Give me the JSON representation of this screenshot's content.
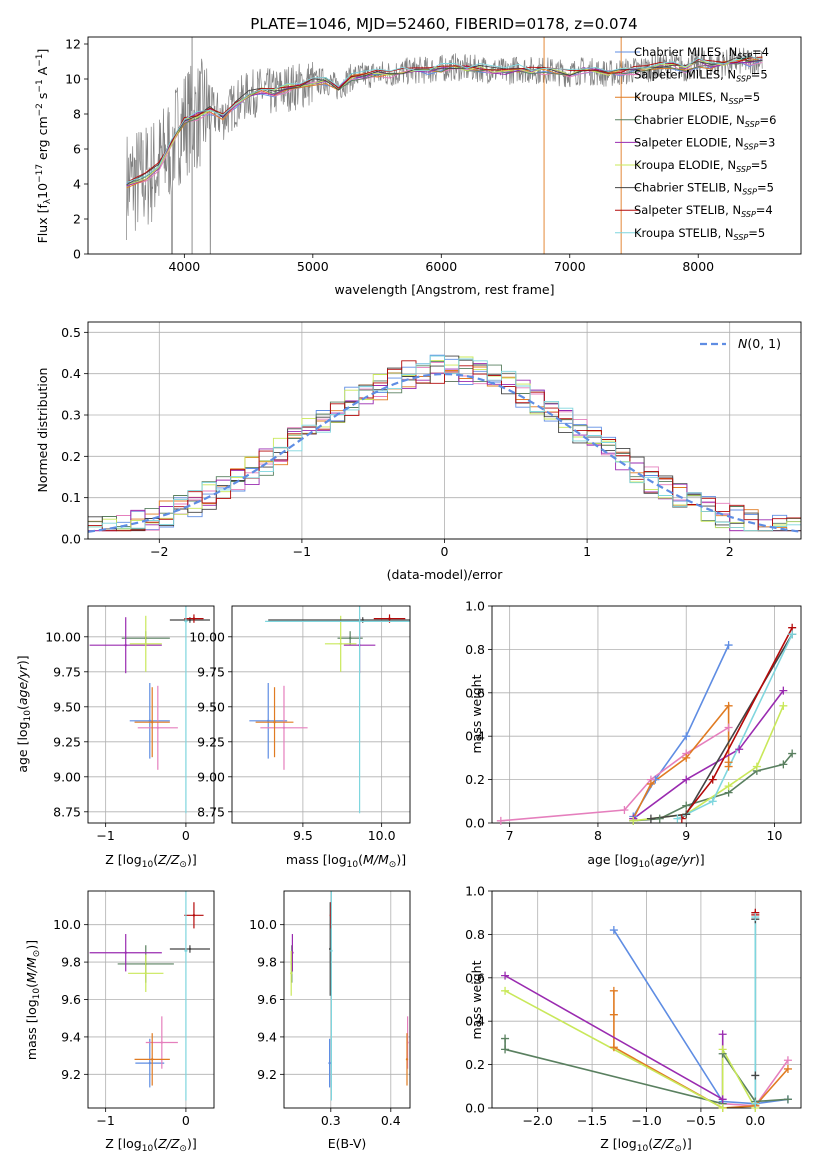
{
  "figure_title": "PLATE=1046, MJD=52460, FIBERID=0178, z=0.074",
  "colors": {
    "Chabrier MILES": "#5f8de3",
    "Salpeter MILES": "#e57fbd",
    "Kroupa MILES": "#e07b22",
    "Chabrier ELODIE": "#5a8060",
    "Salpeter ELODIE": "#9a2bb0",
    "Kroupa ELODIE": "#c9e85a",
    "Chabrier STELIB": "#444444",
    "Salpeter STELIB": "#b40a0a",
    "Kroupa STELIB": "#7fd6de",
    "data": "#808080",
    "gaussian": "#5f8de3",
    "grid": "#b0b0b0"
  },
  "chart_data": [
    {
      "id": "spectrum",
      "type": "line",
      "title": "PLATE=1046, MJD=52460, FIBERID=0178, z=0.074",
      "xlabel": "wavelength [Angstrom, rest frame]",
      "ylabel": "Flux [f_λ 10^-17 erg cm^-2 s^-1 A^-1]",
      "xlim": [
        3250,
        8800
      ],
      "ylim": [
        0,
        12.4
      ],
      "xticks": [
        4000,
        5000,
        6000,
        7000,
        8000
      ],
      "yticks": [
        0,
        2,
        4,
        6,
        8,
        10,
        12
      ],
      "grid": false,
      "legend_position": "upper right",
      "legend": [
        {
          "label": "Chabrier MILES, N_SSP=4",
          "model": "Chabrier MILES"
        },
        {
          "label": "Salpeter MILES, N_SSP=5",
          "model": "Salpeter MILES"
        },
        {
          "label": "Kroupa MILES, N_SSP=5",
          "model": "Kroupa MILES"
        },
        {
          "label": "Chabrier ELODIE, N_SSP=6",
          "model": "Chabrier ELODIE"
        },
        {
          "label": "Salpeter ELODIE, N_SSP=3",
          "model": "Salpeter ELODIE"
        },
        {
          "label": "Kroupa ELODIE, N_SSP=5",
          "model": "Kroupa ELODIE"
        },
        {
          "label": "Chabrier STELIB, N_SSP=5",
          "model": "Chabrier STELIB"
        },
        {
          "label": "Salpeter STELIB, N_SSP=4",
          "model": "Salpeter STELIB"
        },
        {
          "label": "Kroupa STELIB, N_SSP=5",
          "model": "Kroupa STELIB"
        }
      ],
      "model_curve": {
        "x": [
          3550,
          3700,
          3800,
          3900,
          4000,
          4100,
          4200,
          4300,
          4400,
          4500,
          4600,
          4700,
          4800,
          4900,
          5000,
          5100,
          5200,
          5300,
          5400,
          5500,
          5600,
          5700,
          5800,
          5900,
          6000,
          6100,
          6200,
          6300,
          6400,
          6500,
          6600,
          6700,
          6800,
          6900,
          7000,
          7100,
          7200,
          7300,
          7400,
          7500,
          7600,
          7700,
          7800,
          7900,
          8000,
          8100,
          8200,
          8300,
          8400,
          8500
        ],
        "y": [
          4.0,
          4.4,
          5.0,
          6.3,
          7.6,
          7.9,
          8.2,
          7.8,
          8.6,
          9.1,
          9.3,
          9.2,
          9.5,
          9.6,
          9.8,
          9.9,
          9.5,
          10.1,
          10.2,
          10.3,
          10.3,
          10.4,
          10.5,
          10.5,
          10.6,
          10.7,
          10.6,
          10.6,
          10.5,
          10.4,
          10.6,
          10.5,
          10.5,
          10.4,
          10.3,
          10.5,
          10.4,
          10.3,
          10.4,
          10.5,
          10.6,
          10.7,
          10.8,
          10.6,
          10.9,
          10.8,
          10.9,
          11.0,
          11.0,
          11.1
        ]
      }
    },
    {
      "id": "residuals",
      "type": "histogram",
      "xlabel": "(data-model)/error",
      "ylabel": "Normed distribution",
      "xlim": [
        -2.5,
        2.5
      ],
      "ylim": [
        0,
        0.525
      ],
      "xticks": [
        -2,
        -1,
        0,
        1,
        2
      ],
      "yticks": [
        0.0,
        0.1,
        0.2,
        0.3,
        0.4,
        0.5
      ],
      "grid": true,
      "legend": [
        {
          "label": "N(0,1)",
          "style": "dashed"
        }
      ],
      "legend_position": "upper right"
    },
    {
      "id": "age_vs_Z",
      "type": "scatter",
      "xlabel": "Z [log10(Z/Z☉)]",
      "ylabel": "age  [log10(age/yr)]",
      "xlim": [
        -1.22,
        0.35
      ],
      "ylim": [
        8.67,
        10.22
      ],
      "xticks": [
        -1,
        0
      ],
      "yticks": [
        8.75,
        9.0,
        9.25,
        9.5,
        9.75,
        10.0
      ],
      "grid": true,
      "points": [
        {
          "model": "Chabrier MILES",
          "x": -0.45,
          "y": 9.4,
          "xerr": 0.25,
          "yerr": 0.27
        },
        {
          "model": "Salpeter MILES",
          "x": -0.35,
          "y": 9.35,
          "xerr": 0.25,
          "yerr": 0.3
        },
        {
          "model": "Kroupa MILES",
          "x": -0.42,
          "y": 9.39,
          "xerr": 0.22,
          "yerr": 0.25
        },
        {
          "model": "Chabrier ELODIE",
          "x": -0.5,
          "y": 9.99,
          "xerr": 0.3,
          "yerr": 0.05
        },
        {
          "model": "Salpeter ELODIE",
          "x": -0.75,
          "y": 9.94,
          "xerr": 0.45,
          "yerr": 0.2
        },
        {
          "model": "Kroupa ELODIE",
          "x": -0.5,
          "y": 9.95,
          "xerr": 0.2,
          "yerr": 0.2
        },
        {
          "model": "Chabrier STELIB",
          "x": 0.05,
          "y": 10.12,
          "xerr": 0.25,
          "yerr": 0.02
        },
        {
          "model": "Salpeter STELIB",
          "x": 0.1,
          "y": 10.13,
          "xerr": 0.12,
          "yerr": 0.03
        },
        {
          "model": "Kroupa STELIB",
          "x": 0.0,
          "y": 10.11,
          "xerr": 0.02,
          "yerr": 1.37
        }
      ]
    },
    {
      "id": "age_vs_mass",
      "type": "scatter",
      "xlabel": "mass [log10(M/M☉)]",
      "ylabel": "",
      "xlim": [
        9.05,
        10.18
      ],
      "ylim": [
        8.67,
        10.22
      ],
      "xticks": [
        9.5,
        10.0
      ],
      "yticks": [
        8.75,
        9.0,
        9.25,
        9.5,
        9.75,
        10.0
      ],
      "grid": true,
      "points": [
        {
          "model": "Chabrier MILES",
          "x": 9.28,
          "y": 9.4,
          "xerr": 0.12,
          "yerr": 0.27
        },
        {
          "model": "Salpeter MILES",
          "x": 9.38,
          "y": 9.35,
          "xerr": 0.15,
          "yerr": 0.3
        },
        {
          "model": "Kroupa MILES",
          "x": 9.32,
          "y": 9.39,
          "xerr": 0.12,
          "yerr": 0.25
        },
        {
          "model": "Chabrier ELODIE",
          "x": 9.8,
          "y": 9.99,
          "xerr": 0.08,
          "yerr": 0.05
        },
        {
          "model": "Salpeter ELODIE",
          "x": 9.86,
          "y": 9.94,
          "xerr": 0.1,
          "yerr": 0.2
        },
        {
          "model": "Kroupa ELODIE",
          "x": 9.74,
          "y": 9.95,
          "xerr": 0.1,
          "yerr": 0.2
        },
        {
          "model": "Chabrier STELIB",
          "x": 9.88,
          "y": 10.12,
          "xerr": 0.6,
          "yerr": 0.02
        },
        {
          "model": "Salpeter STELIB",
          "x": 10.05,
          "y": 10.13,
          "xerr": 0.1,
          "yerr": 0.03
        },
        {
          "model": "Kroupa STELIB",
          "x": 9.86,
          "y": 10.11,
          "xerr": 0.6,
          "yerr": 1.37
        }
      ]
    },
    {
      "id": "mass_weight_vs_age",
      "type": "line",
      "xlabel": "age  [log10(age/yr)]",
      "ylabel": "mass weight",
      "xlim": [
        6.8,
        10.3
      ],
      "ylim": [
        0,
        1.0
      ],
      "xticks": [
        7,
        8,
        9,
        10
      ],
      "yticks": [
        0.0,
        0.2,
        0.4,
        0.6,
        0.8,
        1.0
      ],
      "grid": true,
      "series": [
        {
          "model": "Chabrier MILES",
          "x": [
            8.4,
            8.65,
            9.0,
            9.48
          ],
          "y": [
            0.03,
            0.2,
            0.4,
            0.82
          ]
        },
        {
          "model": "Salpeter MILES",
          "x": [
            6.9,
            8.3,
            8.6,
            9.0,
            9.48
          ],
          "y": [
            0.01,
            0.06,
            0.2,
            0.32,
            0.44
          ]
        },
        {
          "model": "Kroupa MILES",
          "x": [
            8.4,
            8.6,
            9.0,
            9.48,
            9.48,
            9.48
          ],
          "y": [
            0.02,
            0.18,
            0.3,
            0.54,
            0.26,
            0.28
          ]
        },
        {
          "model": "Chabrier ELODIE",
          "x": [
            8.4,
            8.7,
            9.0,
            9.48,
            9.8,
            10.1,
            10.2
          ],
          "y": [
            0.01,
            0.02,
            0.08,
            0.14,
            0.24,
            0.27,
            0.32
          ]
        },
        {
          "model": "Salpeter ELODIE",
          "x": [
            8.4,
            9.0,
            9.6,
            10.1
          ],
          "y": [
            0.02,
            0.2,
            0.34,
            0.61
          ]
        },
        {
          "model": "Kroupa ELODIE",
          "x": [
            8.4,
            9.0,
            9.48,
            9.8,
            10.1
          ],
          "y": [
            0.01,
            0.04,
            0.17,
            0.26,
            0.54
          ]
        },
        {
          "model": "Chabrier STELIB",
          "x": [
            8.6,
            9.0,
            10.2
          ],
          "y": [
            0.02,
            0.04,
            0.87
          ]
        },
        {
          "model": "Salpeter STELIB",
          "x": [
            8.95,
            9.3,
            10.2
          ],
          "y": [
            0.02,
            0.2,
            0.9
          ]
        },
        {
          "model": "Kroupa STELIB",
          "x": [
            8.9,
            9.3,
            10.2
          ],
          "y": [
            0.02,
            0.1,
            0.87
          ]
        }
      ]
    },
    {
      "id": "mass_vs_Z",
      "type": "scatter",
      "xlabel": "Z [log10(Z/Z☉)]",
      "ylabel": "mass [log10(M/M☉)]",
      "xlim": [
        -1.22,
        0.35
      ],
      "ylim": [
        9.02,
        10.18
      ],
      "xticks": [
        -1,
        0
      ],
      "yticks": [
        9.2,
        9.4,
        9.6,
        9.8,
        10.0
      ],
      "grid": true,
      "points": [
        {
          "model": "Chabrier MILES",
          "x": -0.45,
          "y": 9.26,
          "xerr": 0.18,
          "yerr": 0.13
        },
        {
          "model": "Salpeter MILES",
          "x": -0.3,
          "y": 9.37,
          "xerr": 0.2,
          "yerr": 0.14
        },
        {
          "model": "Kroupa MILES",
          "x": -0.42,
          "y": 9.28,
          "xerr": 0.22,
          "yerr": 0.14
        },
        {
          "model": "Chabrier ELODIE",
          "x": -0.5,
          "y": 9.79,
          "xerr": 0.35,
          "yerr": 0.1
        },
        {
          "model": "Salpeter ELODIE",
          "x": -0.75,
          "y": 9.85,
          "xerr": 0.45,
          "yerr": 0.1
        },
        {
          "model": "Kroupa ELODIE",
          "x": -0.5,
          "y": 9.74,
          "xerr": 0.22,
          "yerr": 0.1
        },
        {
          "model": "Chabrier STELIB",
          "x": 0.05,
          "y": 9.87,
          "xerr": 0.25,
          "yerr": 0.02
        },
        {
          "model": "Salpeter STELIB",
          "x": 0.1,
          "y": 10.05,
          "xerr": 0.12,
          "yerr": 0.07
        },
        {
          "model": "Kroupa STELIB",
          "x": 0.0,
          "y": 9.86,
          "xerr": 0.02,
          "yerr": 0.8
        }
      ]
    },
    {
      "id": "mass_vs_ebv",
      "type": "scatter",
      "xlabel": "E(B-V)",
      "ylabel": "",
      "xlim": [
        0.222,
        0.432
      ],
      "ylim": [
        9.02,
        10.18
      ],
      "xticks": [
        0.3,
        0.4
      ],
      "yticks": [
        9.2,
        9.4,
        9.6,
        9.8,
        10.0
      ],
      "grid": true,
      "points": [
        {
          "model": "Chabrier MILES",
          "x": 0.298,
          "y": 9.26,
          "yerr": 0.13
        },
        {
          "model": "Salpeter MILES",
          "x": 0.428,
          "y": 9.37,
          "yerr": 0.14
        },
        {
          "model": "Kroupa MILES",
          "x": 0.427,
          "y": 9.28,
          "yerr": 0.14
        },
        {
          "model": "Chabrier ELODIE",
          "x": 0.235,
          "y": 9.79,
          "yerr": 0.1
        },
        {
          "model": "Salpeter ELODIE",
          "x": 0.236,
          "y": 9.85,
          "yerr": 0.1
        },
        {
          "model": "Kroupa ELODIE",
          "x": 0.234,
          "y": 9.74,
          "yerr": 0.12
        },
        {
          "model": "Chabrier STELIB",
          "x": 0.299,
          "y": 9.87,
          "yerr": 0.25
        },
        {
          "model": "Salpeter STELIB",
          "x": 0.3,
          "y": 10.05,
          "yerr": 0.07
        },
        {
          "model": "Kroupa STELIB",
          "x": 0.301,
          "y": 9.86,
          "yerr": 0.8
        }
      ]
    },
    {
      "id": "mass_weight_vs_Z",
      "type": "line",
      "xlabel": "Z [log10(Z/Z☉)]",
      "ylabel": "mass weight",
      "xlim": [
        -2.42,
        0.42
      ],
      "ylim": [
        0,
        1.0
      ],
      "xticks": [
        -2.0,
        -1.5,
        -1.0,
        -0.5,
        0.0
      ],
      "yticks": [
        0.0,
        0.2,
        0.4,
        0.6,
        0.8,
        1.0
      ],
      "grid": true,
      "series": [
        {
          "model": "Chabrier MILES",
          "x": [
            -1.3,
            -0.3,
            0.0,
            0.3
          ],
          "y": [
            0.82,
            0.03,
            0.02,
            0.04
          ]
        },
        {
          "model": "Salpeter MILES",
          "x": [
            -0.3,
            0.0,
            0.3
          ],
          "y": [
            0.02,
            0.01,
            0.22
          ]
        },
        {
          "model": "Kroupa MILES",
          "x": [
            -1.3,
            -1.3,
            -1.3,
            -0.3,
            0.0,
            0.3
          ],
          "y": [
            0.54,
            0.43,
            0.28,
            0.0,
            0.01,
            0.18
          ]
        },
        {
          "model": "Chabrier ELODIE",
          "x": [
            -2.3,
            -2.3,
            -0.3,
            -0.3,
            0.0,
            0.3
          ],
          "y": [
            0.32,
            0.27,
            0.02,
            0.25,
            0.03,
            0.04
          ]
        },
        {
          "model": "Salpeter ELODIE",
          "x": [
            -2.3,
            -0.3,
            -0.3
          ],
          "y": [
            0.61,
            0.04,
            0.34
          ]
        },
        {
          "model": "Kroupa ELODIE",
          "x": [
            -2.3,
            -0.3,
            -0.3,
            0.0
          ],
          "y": [
            0.54,
            0.0,
            0.27,
            0.0
          ]
        },
        {
          "model": "Chabrier STELIB",
          "x": [
            0.0,
            0.0,
            0.0
          ],
          "y": [
            0.87,
            0.15,
            0.02
          ]
        },
        {
          "model": "Salpeter STELIB",
          "x": [
            0.0,
            0.0
          ],
          "y": [
            0.9,
            0.89
          ]
        },
        {
          "model": "Kroupa STELIB",
          "x": [
            0.0,
            0.0
          ],
          "y": [
            0.02,
            0.88
          ]
        }
      ]
    }
  ]
}
